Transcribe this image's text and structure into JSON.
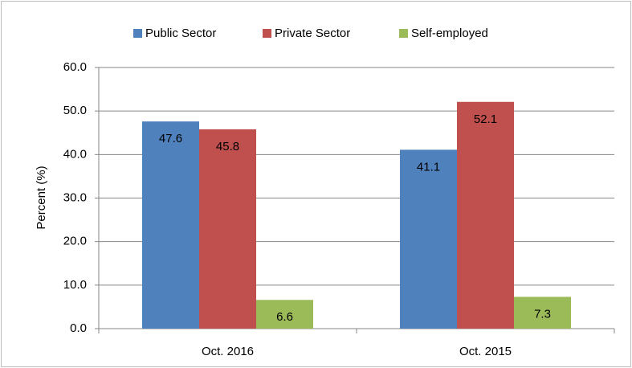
{
  "chart_data": {
    "type": "bar",
    "y_label": "Percent (%)",
    "categories": [
      "Oct. 2016",
      "Oct. 2015"
    ],
    "series": [
      {
        "name": "Public Sector",
        "color": "#4f81bd",
        "values": [
          47.6,
          41.1
        ]
      },
      {
        "name": "Private Sector",
        "color": "#c0504d",
        "values": [
          45.8,
          52.1
        ]
      },
      {
        "name": "Self-employed",
        "color": "#9bbb59",
        "values": [
          6.6,
          7.3
        ]
      }
    ],
    "ylim": [
      0,
      60
    ],
    "yticks": [
      {
        "value": 0,
        "label": "0.0"
      },
      {
        "value": 10,
        "label": "10.0"
      },
      {
        "value": 20,
        "label": "20.0"
      },
      {
        "value": 30,
        "label": "30.0"
      },
      {
        "value": 40,
        "label": "40.0"
      },
      {
        "value": 50,
        "label": "50.0"
      },
      {
        "value": 60,
        "label": "60.0"
      }
    ],
    "grid": true,
    "legend": "top",
    "data_labels": true
  }
}
